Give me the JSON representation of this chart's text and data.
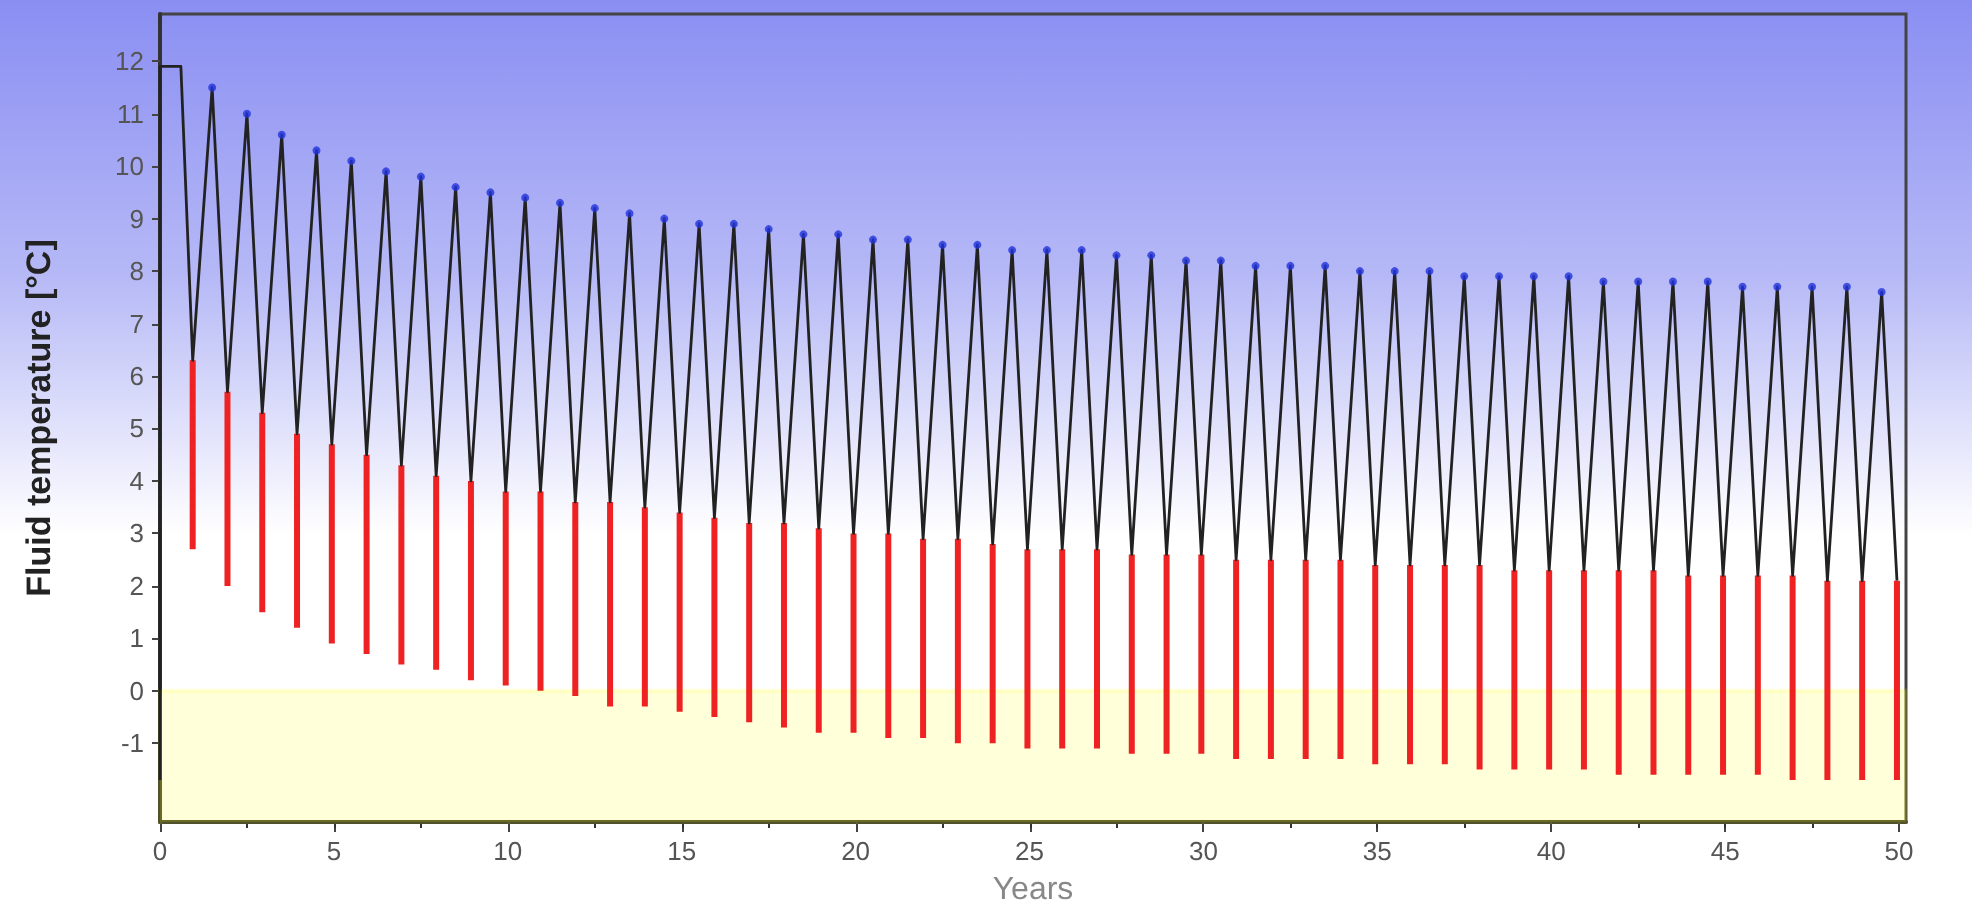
{
  "chart_data": {
    "type": "line",
    "xlabel": "Years",
    "ylabel": "Fluid temperature [°C]",
    "xlim": [
      0,
      50.2
    ],
    "xticks": [
      0,
      5,
      10,
      15,
      20,
      25,
      30,
      35,
      40,
      45,
      50
    ],
    "ylim": [
      -2.5,
      12.9
    ],
    "yticks": [
      -1,
      0,
      1,
      2,
      3,
      4,
      5,
      6,
      7,
      8,
      9,
      10,
      11,
      12
    ],
    "grid": false,
    "marker": "none",
    "bands": [
      {
        "axis": "y",
        "from": -2.5,
        "to": 0,
        "color": "#ffff00"
      }
    ],
    "line_style": "solid",
    "series": [
      {
        "color": "#ee2222",
        "x": [
          0.94,
          0.94,
          null,
          1.94,
          1.94,
          null,
          2.94,
          2.94,
          null,
          3.94,
          3.94,
          null,
          4.94,
          4.94,
          null,
          5.94,
          5.94,
          null,
          6.94,
          6.94,
          null,
          7.94,
          7.94,
          null,
          8.94,
          8.94,
          null,
          9.94,
          9.94,
          null,
          10.94,
          10.94,
          null,
          11.94,
          11.94,
          null,
          12.94,
          12.94,
          null,
          13.94,
          13.94,
          null,
          14.94,
          14.94,
          null,
          15.94,
          15.94,
          null,
          16.94,
          16.94,
          null,
          17.94,
          17.94,
          null,
          18.94,
          18.94,
          null,
          19.94,
          19.94,
          null,
          20.94,
          20.94,
          null,
          21.94,
          21.94,
          null,
          22.94,
          22.94,
          null,
          23.94,
          23.94,
          null,
          24.94,
          24.94,
          null,
          25.94,
          25.94,
          null,
          26.94,
          26.94,
          null,
          27.94,
          27.94,
          null,
          28.94,
          28.94,
          null,
          29.94,
          29.94,
          null,
          30.94,
          30.94,
          null,
          31.94,
          31.94,
          null,
          32.94,
          32.94,
          null,
          33.94,
          33.94,
          null,
          34.94,
          34.94,
          null,
          35.94,
          35.94,
          null,
          36.94,
          36.94,
          null,
          37.94,
          37.94,
          null,
          38.94,
          38.94,
          null,
          39.94,
          39.94,
          null,
          40.94,
          40.94,
          null,
          41.94,
          41.94,
          null,
          42.94,
          42.94,
          null,
          43.94,
          43.94,
          null,
          44.94,
          44.94,
          null,
          45.94,
          45.94,
          null,
          46.94,
          46.94,
          null,
          47.94,
          47.94,
          null,
          48.94,
          48.94,
          null,
          49.94,
          49.94
        ],
        "values": [
          6.3,
          2.7,
          null,
          5.7,
          2.0,
          null,
          5.3,
          1.5,
          null,
          4.9,
          1.2,
          null,
          4.7,
          0.9,
          null,
          4.5,
          0.7,
          null,
          4.3,
          0.5,
          null,
          4.1,
          0.4,
          null,
          4.0,
          0.2,
          null,
          3.8,
          0.1,
          null,
          3.8,
          0.0,
          null,
          3.6,
          -0.1,
          null,
          3.6,
          -0.3,
          null,
          3.5,
          -0.3,
          null,
          3.4,
          -0.4,
          null,
          3.3,
          -0.5,
          null,
          3.2,
          -0.6,
          null,
          3.2,
          -0.7,
          null,
          3.1,
          -0.8,
          null,
          3.0,
          -0.8,
          null,
          3.0,
          -0.9,
          null,
          2.9,
          -0.9,
          null,
          2.9,
          -1.0,
          null,
          2.8,
          -1.0,
          null,
          2.7,
          -1.1,
          null,
          2.7,
          -1.1,
          null,
          2.7,
          -1.1,
          null,
          2.6,
          -1.2,
          null,
          2.6,
          -1.2,
          null,
          2.6,
          -1.2,
          null,
          2.5,
          -1.3,
          null,
          2.5,
          -1.3,
          null,
          2.5,
          -1.3,
          null,
          2.5,
          -1.3,
          null,
          2.4,
          -1.4,
          null,
          2.4,
          -1.4,
          null,
          2.4,
          -1.4,
          null,
          2.4,
          -1.5,
          null,
          2.3,
          -1.5,
          null,
          2.3,
          -1.5,
          null,
          2.3,
          -1.5,
          null,
          2.3,
          -1.6,
          null,
          2.3,
          -1.6,
          null,
          2.2,
          -1.6,
          null,
          2.2,
          -1.6,
          null,
          2.2,
          -1.6,
          null,
          2.2,
          -1.7,
          null,
          2.1,
          -1.7,
          null,
          2.1,
          -1.7,
          null,
          2.1,
          -1.7
        ]
      },
      {
        "color": "#222222",
        "x": [
          0,
          0,
          0.6,
          0.94,
          1.5,
          1.94,
          2.5,
          2.94,
          3.5,
          3.94,
          4.5,
          4.94,
          5.5,
          5.94,
          6.5,
          6.94,
          7.5,
          7.94,
          8.5,
          8.94,
          9.5,
          9.94,
          10.5,
          10.94,
          11.5,
          11.94,
          12.5,
          12.94,
          13.5,
          13.94,
          14.5,
          14.94,
          15.5,
          15.94,
          16.5,
          16.94,
          17.5,
          17.94,
          18.5,
          18.94,
          19.5,
          19.94,
          20.5,
          20.94,
          21.5,
          21.94,
          22.5,
          22.94,
          23.5,
          23.94,
          24.5,
          24.94,
          25.5,
          25.94,
          26.5,
          26.94,
          27.5,
          27.94,
          28.5,
          28.94,
          29.5,
          29.94,
          30.5,
          30.94,
          31.5,
          31.94,
          32.5,
          32.94,
          33.5,
          33.94,
          34.5,
          34.94,
          35.5,
          35.94,
          36.5,
          36.94,
          37.5,
          37.94,
          38.5,
          38.94,
          39.5,
          39.94,
          40.5,
          40.94,
          41.5,
          41.94,
          42.5,
          42.94,
          43.5,
          43.94,
          44.5,
          44.94,
          45.5,
          45.94,
          46.5,
          46.94,
          47.5,
          47.94,
          48.5,
          48.94,
          49.5,
          49.94
        ],
        "values": [
          -1.7,
          11.9,
          11.9,
          6.3,
          11.5,
          5.7,
          11.0,
          5.3,
          10.6,
          4.9,
          10.3,
          4.7,
          10.1,
          4.5,
          9.9,
          4.3,
          9.8,
          4.1,
          9.6,
          4.0,
          9.5,
          3.8,
          9.4,
          3.8,
          9.3,
          3.6,
          9.2,
          3.6,
          9.1,
          3.5,
          9.0,
          3.4,
          8.9,
          3.3,
          8.9,
          3.2,
          8.8,
          3.2,
          8.7,
          3.1,
          8.7,
          3.0,
          8.6,
          3.0,
          8.6,
          2.9,
          8.5,
          2.9,
          8.5,
          2.8,
          8.4,
          2.7,
          8.4,
          2.7,
          8.4,
          2.7,
          8.3,
          2.6,
          8.3,
          2.6,
          8.2,
          2.6,
          8.2,
          2.5,
          8.1,
          2.5,
          8.1,
          2.5,
          8.1,
          2.5,
          8.0,
          2.4,
          8.0,
          2.4,
          8.0,
          2.4,
          7.9,
          2.4,
          7.9,
          2.3,
          7.9,
          2.3,
          7.9,
          2.3,
          7.8,
          2.3,
          7.8,
          2.3,
          7.8,
          2.2,
          7.8,
          2.2,
          7.7,
          2.2,
          7.7,
          2.2,
          7.7,
          2.1,
          7.7,
          2.1,
          7.6,
          2.1
        ]
      },
      {
        "type": "scatter",
        "color": "#2233dd",
        "marker": "circle",
        "x": [
          1.5,
          2.5,
          3.5,
          4.5,
          5.5,
          6.5,
          7.5,
          8.5,
          9.5,
          10.5,
          11.5,
          12.5,
          13.5,
          14.5,
          15.5,
          16.5,
          17.5,
          18.5,
          19.5,
          20.5,
          21.5,
          22.5,
          23.5,
          24.5,
          25.5,
          26.5,
          27.5,
          28.5,
          29.5,
          30.5,
          31.5,
          32.5,
          33.5,
          34.5,
          35.5,
          36.5,
          37.5,
          38.5,
          39.5,
          40.5,
          41.5,
          42.5,
          43.5,
          44.5,
          45.5,
          46.5,
          47.5,
          48.5,
          49.5
        ],
        "values": [
          11.5,
          11.0,
          10.6,
          10.3,
          10.1,
          9.9,
          9.8,
          9.6,
          9.5,
          9.4,
          9.3,
          9.2,
          9.1,
          9.0,
          8.9,
          8.9,
          8.8,
          8.7,
          8.7,
          8.6,
          8.6,
          8.5,
          8.5,
          8.4,
          8.4,
          8.4,
          8.3,
          8.3,
          8.2,
          8.2,
          8.1,
          8.1,
          8.1,
          8.0,
          8.0,
          8.0,
          7.9,
          7.9,
          7.9,
          7.9,
          7.8,
          7.8,
          7.8,
          7.8,
          7.7,
          7.7,
          7.7,
          7.7,
          7.6
        ]
      }
    ]
  }
}
